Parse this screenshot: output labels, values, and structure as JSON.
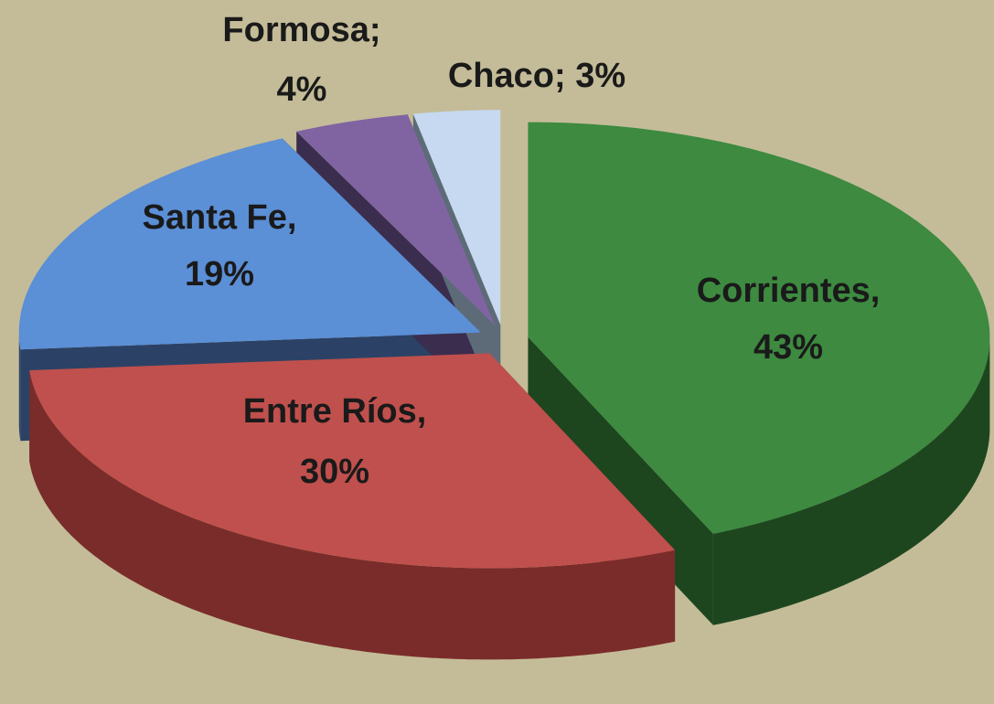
{
  "chart_data": {
    "type": "pie",
    "three_d": true,
    "exploded": true,
    "categories": [
      "Corrientes,",
      "Entre Ríos,",
      "Santa Fe,",
      "Formosa;",
      "Chaco;"
    ],
    "values": [
      43,
      30,
      19,
      4,
      3
    ],
    "value_labels": [
      "43%",
      "30%",
      "19%",
      "4%",
      "3%"
    ],
    "colors": [
      "#3d8a40",
      "#c0504d",
      "#5b8fd6",
      "#8064a2",
      "#c6d9f1"
    ],
    "side_colors": [
      "#1d461f",
      "#7a2c2a",
      "#2b4266",
      "#3b2d4d",
      "#5d6b79"
    ]
  }
}
